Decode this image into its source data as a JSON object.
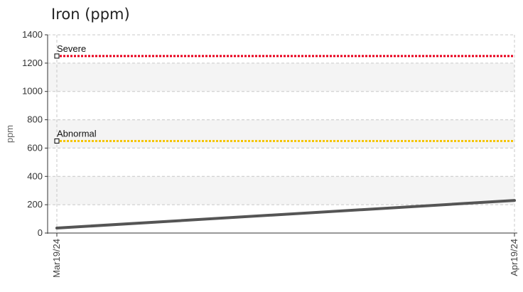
{
  "chart_data": {
    "type": "line",
    "title": "Iron (ppm)",
    "xlabel": "",
    "ylabel": "ppm",
    "x": [
      "Mar19/24",
      "Apr19/24"
    ],
    "series": [
      {
        "name": "",
        "values": [
          35,
          230
        ],
        "color": "#555555"
      }
    ],
    "thresholds": [
      {
        "label": "Severe",
        "value": 1250,
        "color": "#e8001c"
      },
      {
        "label": "Abnormal",
        "value": 650,
        "color": "#f5c400"
      }
    ],
    "ylim": [
      0,
      1400
    ],
    "yticks": [
      0,
      200,
      400,
      600,
      800,
      1000,
      1200,
      1400
    ],
    "grid": true,
    "legend": "none"
  }
}
